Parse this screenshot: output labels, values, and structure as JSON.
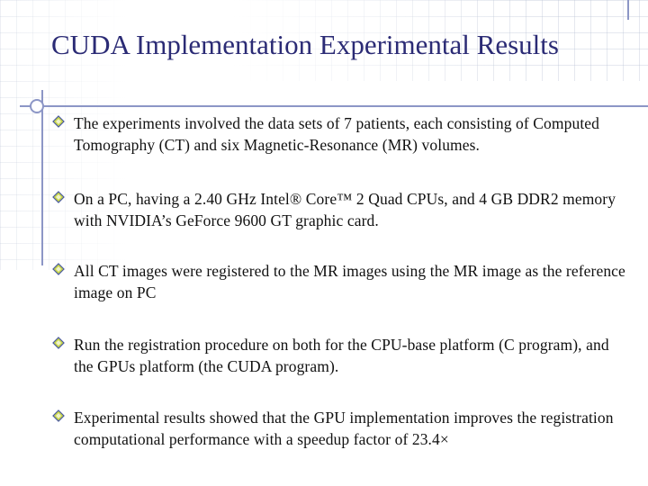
{
  "slide": {
    "title": "CUDA Implementation Experimental Results",
    "bullets": [
      {
        "text": "The experiments involved the data sets of 7 patients, each consisting of Computed Tomography (CT) and six Magnetic-Resonance (MR) volumes."
      },
      {
        "text": "On a PC, having a 2.40 GHz Intel® Core™ 2 Quad CPUs, and 4 GB DDR2 memory with NVIDIA’s GeForce 9600 GT graphic card."
      },
      {
        "text": "All CT images were registered to the MR images using the MR image as the reference image on PC"
      },
      {
        "text": "Run the registration procedure on both for the CPU-base platform (C program), and the GPUs platform (the CUDA program)."
      },
      {
        "text": "Experimental results showed that the GPU implementation improves the registration computational performance with a speedup factor of 23.4×"
      }
    ]
  },
  "icons": {
    "bullet": "diamond-bullet-icon"
  },
  "colors": {
    "title": "#2b2b75",
    "accent": "#8c96c6",
    "bullet_fill": "#c9d64a"
  }
}
